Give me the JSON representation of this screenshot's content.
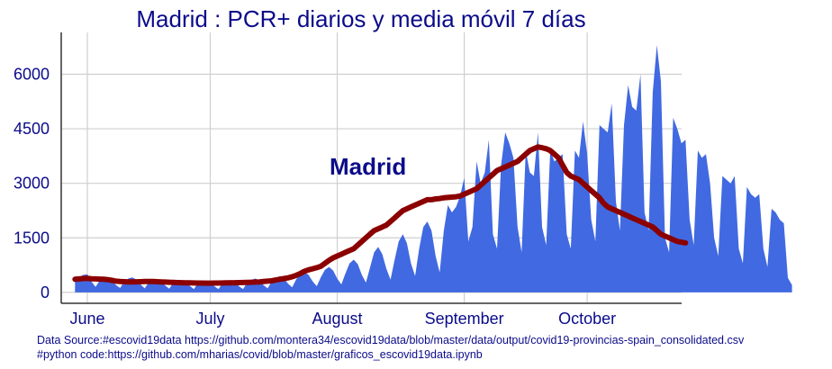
{
  "chart_data": {
    "type": "area",
    "title": "Madrid : PCR+ diarios y media móvil 7 días",
    "xlabel": "",
    "ylabel": "",
    "annotation": "Madrid",
    "x_start": "2020-05-29",
    "x_ticks": [
      {
        "label": "June",
        "date": "2020-06-01"
      },
      {
        "label": "July",
        "date": "2020-07-01"
      },
      {
        "label": "August",
        "date": "2020-08-01"
      },
      {
        "label": "September",
        "date": "2020-09-01"
      },
      {
        "label": "October",
        "date": "2020-10-01"
      }
    ],
    "y_ticks": [
      0,
      1500,
      3000,
      4500,
      6000
    ],
    "ylim": [
      -300,
      7150
    ],
    "grid": true,
    "colors": {
      "daily": "#4169e1",
      "average": "#8b0000",
      "text": "#0b0b8a"
    },
    "series": [
      {
        "kind": "daily",
        "values": [
          350,
          420,
          480,
          500,
          300,
          150,
          320,
          380,
          400,
          330,
          200,
          120,
          300,
          380,
          410,
          350,
          220,
          110,
          280,
          340,
          360,
          300,
          190,
          100,
          270,
          320,
          340,
          290,
          180,
          90,
          250,
          310,
          330,
          280,
          170,
          90,
          250,
          320,
          340,
          290,
          170,
          90,
          260,
          340,
          380,
          330,
          200,
          110,
          300,
          400,
          450,
          390,
          240,
          140,
          360,
          500,
          560,
          480,
          300,
          170,
          420,
          620,
          700,
          600,
          380,
          220,
          520,
          800,
          900,
          780,
          480,
          270,
          680,
          1100,
          1250,
          1050,
          650,
          350,
          900,
          1400,
          1600,
          1350,
          800,
          450,
          1200,
          1800,
          1950,
          1700,
          1000,
          550,
          1700,
          2400,
          2200,
          2350,
          2650,
          3150,
          1400,
          1800,
          3600,
          3000,
          3300,
          4200,
          1600,
          1200,
          3500,
          4400,
          4100,
          3700,
          1800,
          1100,
          3900,
          3300,
          3200,
          4400,
          1800,
          1300,
          3900,
          3600,
          3700,
          3800,
          1600,
          1200,
          3900,
          3700,
          4700,
          3800,
          2000,
          1400,
          4600,
          4500,
          4400,
          5200,
          2500,
          1700,
          4600,
          5700,
          5100,
          5000,
          6000,
          2200,
          1700,
          5500,
          6800,
          5800,
          1500,
          1100,
          4800,
          4500,
          4100,
          4200,
          2000,
          1300,
          3900,
          3700,
          3800,
          3000,
          1500,
          1000,
          3200,
          3100,
          3000,
          3200,
          1200,
          800,
          2900,
          2700,
          2600,
          2700,
          1200,
          700,
          2300,
          2200,
          2000,
          1900,
          400,
          200
        ]
      },
      {
        "kind": "moving_average_7d",
        "values": [
          360,
          370,
          380,
          385,
          375,
          370,
          365,
          360,
          350,
          330,
          310,
          300,
          295,
          290,
          290,
          292,
          295,
          298,
          300,
          298,
          295,
          290,
          285,
          280,
          275,
          270,
          268,
          265,
          262,
          260,
          258,
          256,
          255,
          255,
          256,
          258,
          260,
          262,
          265,
          268,
          270,
          272,
          275,
          280,
          285,
          290,
          300,
          310,
          320,
          340,
          360,
          380,
          400,
          430,
          470,
          520,
          580,
          620,
          650,
          680,
          720,
          800,
          880,
          950,
          1000,
          1050,
          1100,
          1150,
          1200,
          1300,
          1400,
          1500,
          1600,
          1700,
          1750,
          1800,
          1850,
          1950,
          2050,
          2150,
          2250,
          2300,
          2350,
          2400,
          2450,
          2500,
          2550,
          2550,
          2570,
          2580,
          2600,
          2610,
          2620,
          2630,
          2650,
          2700,
          2750,
          2800,
          2850,
          2950,
          3050,
          3150,
          3250,
          3350,
          3400,
          3450,
          3500,
          3550,
          3600,
          3700,
          3800,
          3900,
          3950,
          4000,
          3980,
          3950,
          3900,
          3800,
          3700,
          3500,
          3300,
          3200,
          3150,
          3100,
          3000,
          2900,
          2800,
          2700,
          2600,
          2450,
          2350,
          2300,
          2250,
          2200,
          2150,
          2100,
          2050,
          2000,
          1950,
          1900,
          1850,
          1800,
          1700,
          1600,
          1550,
          1500,
          1450,
          1400,
          1380,
          1360
        ]
      }
    ]
  },
  "footer": {
    "source": "Data Source:#escovid19data https://github.com/montera34/escovid19data/blob/master/data/output/covid19-provincias-spain_consolidated.csv",
    "code": "#python code:https://github.com/mharias/covid/blob/master/graficos_escovid19data.ipynb"
  }
}
